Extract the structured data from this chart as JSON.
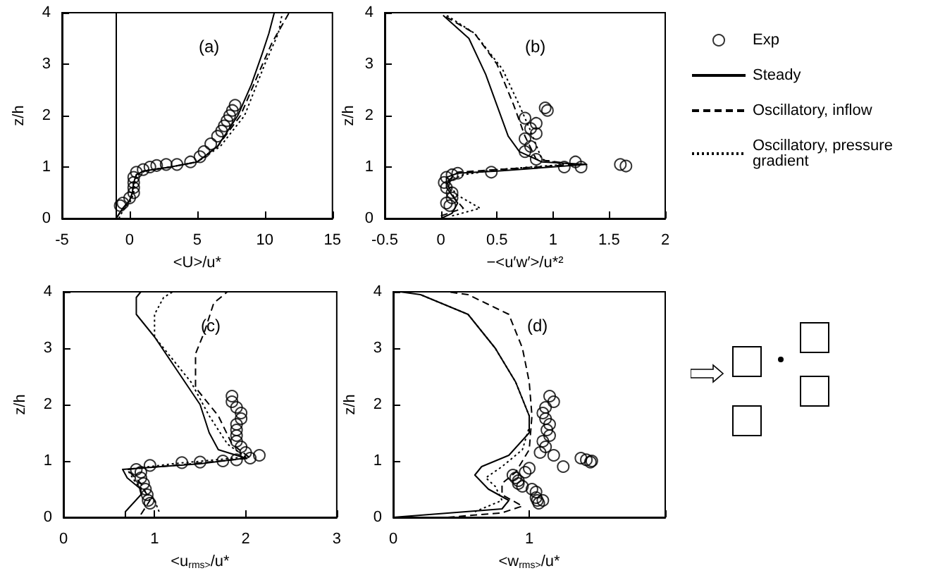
{
  "chart_data": [
    {
      "type": "line",
      "xlabel": "<U>/u*",
      "ylabel": "z/h",
      "annotations": [
        "(a)"
      ],
      "xlim": [
        -5,
        15
      ],
      "xticks": [
        -5,
        0,
        5,
        10,
        15
      ],
      "ylim": [
        0,
        4
      ],
      "yticks": [
        0,
        1,
        2,
        3,
        4
      ],
      "grid": false,
      "ref_lines": [
        {
          "axis": "x",
          "value": -1,
          "color": "#000000"
        }
      ],
      "series": [
        {
          "type": "scatter",
          "marker": "circle",
          "color": "#000000",
          "x": [
            -0.7,
            -0.5,
            0,
            0.3,
            0.3,
            0.3,
            0.3,
            0.5,
            1,
            1.5,
            2,
            2.7,
            3.5,
            4.5,
            5.2,
            5.5,
            6,
            6.5,
            6.8,
            7,
            7.2,
            7.4,
            7.6,
            7.8
          ],
          "values": [
            0.25,
            0.3,
            0.4,
            0.5,
            0.6,
            0.7,
            0.8,
            0.9,
            0.95,
            1,
            1.03,
            1.05,
            1.05,
            1.1,
            1.2,
            1.3,
            1.45,
            1.6,
            1.7,
            1.8,
            1.9,
            2.0,
            2.1,
            2.2
          ]
        },
        {
          "marker": "none",
          "line_style": "solid",
          "color": "#000000",
          "x": [
            -1,
            -0.5,
            0,
            0.2,
            0.3,
            0.5,
            1,
            3,
            5,
            6.5,
            8,
            9,
            9.8,
            10.3,
            10.7
          ],
          "values": [
            0,
            0.2,
            0.35,
            0.5,
            0.7,
            0.85,
            0.92,
            1.0,
            1.1,
            1.4,
            2.0,
            2.6,
            3.2,
            3.6,
            4
          ]
        },
        {
          "marker": "none",
          "line_style": "dashed",
          "color": "#000000",
          "x": [
            -1,
            -0.5,
            0,
            0.2,
            0.3,
            0.5,
            1,
            3,
            5,
            6.5,
            8.2,
            9.5,
            10.5,
            11.8
          ],
          "values": [
            0,
            0.2,
            0.35,
            0.5,
            0.7,
            0.85,
            0.92,
            1.0,
            1.1,
            1.4,
            2.0,
            2.8,
            3.4,
            4
          ]
        },
        {
          "marker": "none",
          "line_style": "dotted",
          "color": "#000000",
          "x": [
            -0.8,
            -0.4,
            0.1,
            0.3,
            0.4,
            0.6,
            1.2,
            3,
            5,
            6.7,
            8.5,
            10,
            11,
            11.3
          ],
          "values": [
            0,
            0.2,
            0.35,
            0.5,
            0.7,
            0.85,
            0.93,
            1.0,
            1.1,
            1.4,
            2.0,
            3.0,
            3.6,
            4
          ]
        }
      ]
    },
    {
      "type": "line",
      "xlabel": "−<u′w′>/u*²",
      "ylabel": "z/h",
      "annotations": [
        "(b)"
      ],
      "xlim": [
        -0.5,
        2
      ],
      "xticks": [
        -0.5,
        0,
        0.5,
        1,
        1.5,
        2
      ],
      "ylim": [
        0,
        4
      ],
      "yticks": [
        0,
        1,
        2,
        3,
        4
      ],
      "grid": false,
      "legend": "right",
      "series": [
        {
          "name": "Exp",
          "type": "scatter",
          "marker": "circle",
          "color": "#000000",
          "x": [
            0.05,
            0.03,
            0.05,
            0.1,
            0.15,
            0.45,
            0.05,
            0.1,
            0.1,
            0.08,
            1.1,
            1.2,
            1.25,
            1.6,
            1.65,
            0.85,
            0.75,
            0.8,
            0.75,
            0.85,
            0.8,
            0.85,
            0.75,
            0.95,
            0.93
          ],
          "values": [
            0.6,
            0.7,
            0.8,
            0.85,
            0.88,
            0.9,
            0.3,
            0.4,
            0.5,
            0.25,
            1.0,
            1.1,
            1.0,
            1.05,
            1.02,
            1.15,
            1.3,
            1.4,
            1.55,
            1.65,
            1.75,
            1.85,
            1.95,
            2.1,
            2.15
          ]
        },
        {
          "name": "Steady",
          "marker": "none",
          "line_style": "solid",
          "color": "#000000",
          "x": [
            0,
            0.1,
            0.15,
            0.05,
            0.05,
            0.15,
            0.5,
            1.3,
            0.9,
            0.7,
            0.6,
            0.5,
            0.4,
            0.25,
            0.02
          ],
          "values": [
            0,
            0.1,
            0.3,
            0.6,
            0.8,
            0.88,
            0.92,
            1.05,
            1.1,
            1.3,
            1.6,
            2.2,
            2.8,
            3.5,
            3.95
          ]
        },
        {
          "name": "Oscillatory, inflow",
          "marker": "none",
          "line_style": "dashed",
          "color": "#000000",
          "x": [
            0,
            0.2,
            0.12,
            0.05,
            0.15,
            1.2,
            0.85,
            0.75,
            0.65,
            0.5,
            0.3,
            0.02
          ],
          "values": [
            0.05,
            0.2,
            0.4,
            0.7,
            0.9,
            1.05,
            1.15,
            1.6,
            2.2,
            3,
            3.6,
            3.95
          ]
        },
        {
          "name": "Oscillatory, pressure gradient",
          "marker": "none",
          "line_style": "dotted",
          "color": "#000000",
          "x": [
            0.1,
            0.35,
            0.15,
            0.05,
            0.2,
            0.5,
            1.1,
            0.9,
            0.8,
            0.7,
            0.55,
            0.3,
            0.05
          ],
          "values": [
            0.05,
            0.2,
            0.45,
            0.7,
            0.85,
            0.95,
            1.05,
            1.15,
            1.7,
            2.2,
            2.9,
            3.6,
            3.95
          ]
        }
      ]
    },
    {
      "type": "line",
      "xlabel": "<u$_{rms>}$/u*",
      "ylabel": "z/h",
      "annotations": [
        "(c)"
      ],
      "xlim": [
        0,
        3
      ],
      "xticks": [
        0,
        1,
        2,
        3
      ],
      "ylim": [
        0,
        4
      ],
      "yticks": [
        0,
        1,
        2,
        3,
        4
      ],
      "grid": false,
      "series": [
        {
          "type": "scatter",
          "marker": "circle",
          "color": "#000000",
          "x": [
            0.85,
            0.85,
            0.88,
            0.9,
            0.92,
            0.93,
            0.95,
            0.8,
            0.95,
            1.3,
            1.5,
            1.75,
            1.9,
            2.05,
            2.15,
            2.0,
            1.95,
            1.9,
            1.9,
            1.9,
            1.9,
            1.95,
            1.95,
            1.9,
            1.85,
            1.85
          ],
          "values": [
            0.8,
            0.7,
            0.6,
            0.5,
            0.4,
            0.3,
            0.25,
            0.85,
            0.92,
            0.97,
            0.98,
            1.0,
            1.02,
            1.05,
            1.1,
            1.15,
            1.25,
            1.35,
            1.45,
            1.55,
            1.65,
            1.75,
            1.85,
            1.95,
            2.05,
            2.15
          ]
        },
        {
          "marker": "none",
          "line_style": "solid",
          "color": "#000000",
          "x": [
            0.68,
            0.68,
            0.85,
            0.85,
            0.7,
            0.65,
            1.5,
            2.0,
            1.7,
            1.6,
            1.5,
            1.25,
            1.0,
            0.8,
            0.8,
            0.85
          ],
          "values": [
            0,
            0.1,
            0.4,
            0.5,
            0.7,
            0.85,
            0.95,
            1.05,
            1.2,
            1.5,
            2.0,
            2.6,
            3.2,
            3.6,
            3.9,
            4.0
          ]
        },
        {
          "marker": "none",
          "line_style": "dashed",
          "color": "#000000",
          "x": [
            0.85,
            0.95,
            0.85,
            0.7,
            1.2,
            2.05,
            1.85,
            1.7,
            1.45,
            1.45,
            1.55,
            1.65,
            1.8
          ],
          "values": [
            0.05,
            0.3,
            0.6,
            0.85,
            0.92,
            1.05,
            1.3,
            1.8,
            2.3,
            2.9,
            3.3,
            3.8,
            4.0
          ]
        },
        {
          "marker": "none",
          "line_style": "dotted",
          "color": "#000000",
          "x": [
            1.05,
            1.0,
            0.8,
            0.7,
            1.2,
            2.0,
            1.8,
            1.6,
            1.4,
            1.0,
            1.0,
            1.1,
            1.2
          ],
          "values": [
            0.1,
            0.3,
            0.6,
            0.85,
            0.95,
            1.07,
            1.3,
            1.8,
            2.4,
            3.2,
            3.6,
            3.9,
            4.0
          ]
        }
      ]
    },
    {
      "type": "line",
      "xlabel": "<w$_{rms>}$/u*",
      "ylabel": "z/h",
      "annotations": [
        "(d)"
      ],
      "xlim": [
        0,
        2
      ],
      "xticks": [
        0,
        1,
        {
          "value": 2,
          "label": null
        }
      ],
      "ylim": [
        0,
        4
      ],
      "yticks": [
        0,
        1,
        2,
        3,
        4
      ],
      "grid": false,
      "series": [
        {
          "type": "scatter",
          "marker": "circle",
          "color": "#000000",
          "x": [
            0.9,
            0.88,
            0.92,
            0.95,
            0.92,
            0.97,
            1.0,
            1.02,
            1.05,
            1.05,
            1.06,
            1.1,
            1.07,
            1.08,
            1.12,
            1.1,
            1.15,
            1.13,
            1.15,
            1.12,
            1.1,
            1.12,
            1.18,
            1.15,
            1.18,
            1.25,
            1.38,
            1.42,
            1.45,
            1.46
          ],
          "values": [
            0.7,
            0.75,
            0.6,
            0.55,
            0.65,
            0.8,
            0.87,
            0.5,
            0.45,
            0.35,
            0.3,
            0.3,
            0.25,
            1.15,
            1.25,
            1.35,
            1.45,
            1.55,
            1.65,
            1.75,
            1.85,
            1.95,
            2.05,
            2.15,
            1.1,
            0.9,
            1.05,
            1.02,
            0.98,
            1.0
          ]
        },
        {
          "marker": "none",
          "line_style": "solid",
          "color": "#000000",
          "x": [
            0,
            0.8,
            0.85,
            0.7,
            0.6,
            0.65,
            0.85,
            1.0,
            1.0,
            0.9,
            0.75,
            0.55,
            0.2,
            0.05
          ],
          "values": [
            0,
            0.15,
            0.3,
            0.5,
            0.75,
            0.9,
            1.1,
            1.5,
            1.8,
            2.4,
            3.0,
            3.6,
            3.95,
            4.0
          ]
        },
        {
          "marker": "none",
          "line_style": "dashed",
          "color": "#000000",
          "x": [
            0.4,
            0.8,
            0.95,
            0.8,
            0.8,
            0.9,
            1.0,
            1.02,
            1.0,
            0.95,
            0.85,
            0.55,
            0.4
          ],
          "values": [
            0,
            0.08,
            0.2,
            0.4,
            0.6,
            0.8,
            1.2,
            1.8,
            2.4,
            3.0,
            3.6,
            3.95,
            4.0
          ]
        },
        {
          "marker": "none",
          "line_style": "dotted",
          "color": "#000000",
          "x": [
            0.6,
            0.8,
            0.75,
            0.68,
            0.8,
            0.95,
            1.0,
            1.0,
            0.9,
            0.75,
            0.55,
            0.2
          ],
          "values": [
            0.1,
            0.3,
            0.55,
            0.7,
            0.9,
            1.2,
            1.6,
            1.8,
            2.4,
            3.0,
            3.6,
            3.95
          ]
        }
      ]
    }
  ]
}
